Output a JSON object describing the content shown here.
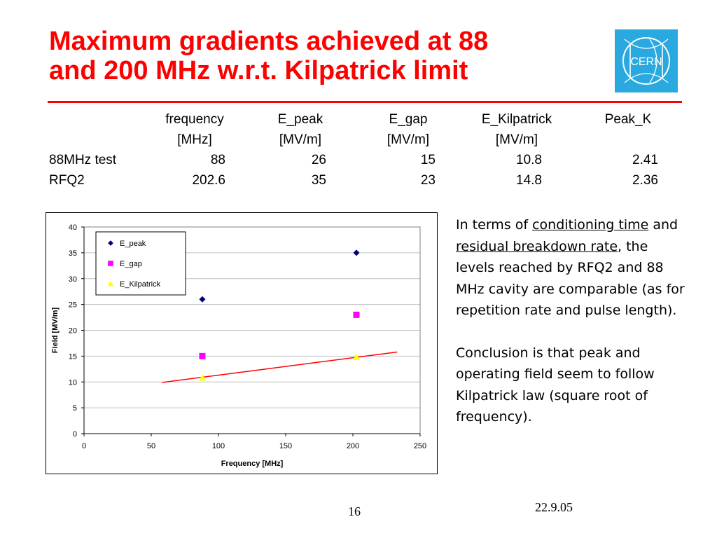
{
  "slide": {
    "title_line1": "Maximum gradients achieved at 88",
    "title_line2": "and 200 MHz w.r.t. Kilpatrick limit",
    "logo_text": "CERN",
    "page_number": "16",
    "date": "22.9.05",
    "colors": {
      "title": "#ff0000",
      "rule": "#ff0000",
      "logo_bg": "#29a9df"
    }
  },
  "table": {
    "header_row1": [
      "",
      "frequency",
      "E_peak",
      "E_gap",
      "E_Kilpatrick",
      "Peak_K"
    ],
    "header_row2": [
      "",
      "[MHz]",
      "[MV/m]",
      "[MV/m]",
      "[MV/m]",
      ""
    ],
    "rows": [
      [
        "88MHz test",
        "88",
        "26",
        "15",
        "10.8",
        "2.41"
      ],
      [
        "RFQ2",
        "202.6",
        "35",
        "23",
        "14.8",
        "2.36"
      ]
    ]
  },
  "side_text": {
    "p1_a": "In terms of ",
    "p1_u1": "conditioning time",
    "p1_b": " and ",
    "p1_u2": "residual breakdown rate",
    "p1_c": ", the levels reached by RFQ2 and 88 MHz cavity are comparable (as for repetition rate and pulse length).",
    "p2": "Conclusion is that peak and operating field seem to follow Kilpatrick law (square root of frequency)."
  },
  "chart_data": {
    "type": "scatter",
    "xlabel": "Frequency [MHz]",
    "ylabel": "Field [MV/m]",
    "xlim": [
      0,
      250
    ],
    "ylim": [
      0,
      40
    ],
    "xticks": [
      0,
      50,
      100,
      150,
      200,
      250
    ],
    "yticks": [
      0,
      5,
      10,
      15,
      20,
      25,
      30,
      35,
      40
    ],
    "grid": "horizontal",
    "legend_position": "top-left",
    "series": [
      {
        "name": "E_peak",
        "marker": "diamond",
        "color": "#000080",
        "points": [
          [
            88,
            26
          ],
          [
            202.6,
            35
          ]
        ]
      },
      {
        "name": "E_gap",
        "marker": "square",
        "color": "#ff00ff",
        "points": [
          [
            88,
            15
          ],
          [
            202.6,
            23
          ]
        ]
      },
      {
        "name": "E_Kilpatrick",
        "marker": "triangle",
        "color": "#ffff00",
        "points": [
          [
            88,
            10.8
          ],
          [
            202.6,
            14.8
          ]
        ]
      }
    ],
    "fit_line": {
      "color": "#ff0000",
      "from": [
        58,
        9.9
      ],
      "to": [
        233,
        15.8
      ]
    }
  }
}
